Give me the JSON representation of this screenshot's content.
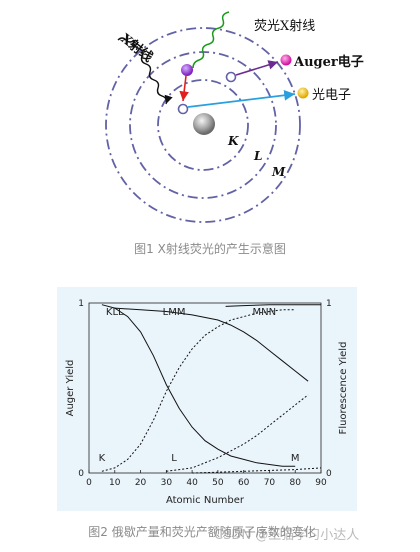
{
  "figure1": {
    "labels": {
      "incident_xray": "X射线",
      "fluorescent_xray": "荧光X射线",
      "auger_electron": "Auger电子",
      "photoelectron": "光电子",
      "shell_k": "K",
      "shell_l": "L",
      "shell_m": "M"
    },
    "colors": {
      "orbit": "#6262a6",
      "fluorescent_wave": "#1a9a1a",
      "auger_arrow": "#6a2c90",
      "auger_dot": "#e020a0",
      "photo_arrow": "#28a0e0",
      "photo_dot": "#f0c020",
      "red_arrow": "#e02020",
      "purple_electron": "#8a2be2",
      "nucleus": "#9a9a9a"
    },
    "caption": "图1 X射线荧光的产生示意图"
  },
  "chart_data": {
    "type": "line",
    "xlabel": "Atomic Number",
    "ylabel_left": "Auger Yield",
    "ylabel_right": "Fluorescence Yield",
    "xlim": [
      0,
      90
    ],
    "ylim": [
      0,
      1
    ],
    "x_ticks": [
      0,
      10,
      20,
      30,
      40,
      50,
      60,
      70,
      80,
      90
    ],
    "y_ticks_left": [
      0,
      1
    ],
    "y_ticks_right": [
      0,
      1
    ],
    "annotations": {
      "top": [
        "KLL",
        "LMM",
        "MNN"
      ],
      "bottom": [
        "K",
        "L",
        "M"
      ]
    },
    "series": [
      {
        "name": "KLL",
        "style": "solid",
        "x": [
          5,
          10,
          15,
          20,
          25,
          30,
          35,
          40,
          45,
          50,
          55,
          60,
          65,
          70,
          75,
          80
        ],
        "y": [
          0.99,
          0.97,
          0.92,
          0.83,
          0.69,
          0.52,
          0.38,
          0.27,
          0.19,
          0.14,
          0.1,
          0.08,
          0.06,
          0.05,
          0.04,
          0.04
        ]
      },
      {
        "name": "LMM",
        "style": "solid",
        "x": [
          10,
          20,
          30,
          40,
          50,
          55,
          60,
          65,
          70,
          75,
          80,
          85
        ],
        "y": [
          0.97,
          0.96,
          0.95,
          0.93,
          0.9,
          0.87,
          0.83,
          0.78,
          0.72,
          0.66,
          0.6,
          0.54
        ]
      },
      {
        "name": "MNN",
        "style": "solid",
        "x": [
          53,
          60,
          70,
          80,
          90
        ],
        "y": [
          0.98,
          0.985,
          0.99,
          0.99,
          0.99
        ]
      },
      {
        "name": "K",
        "style": "dashed",
        "x": [
          5,
          10,
          15,
          20,
          25,
          30,
          35,
          40,
          45,
          50,
          55,
          60,
          65,
          70,
          75,
          80
        ],
        "y": [
          0.01,
          0.03,
          0.08,
          0.17,
          0.31,
          0.48,
          0.62,
          0.73,
          0.81,
          0.86,
          0.9,
          0.92,
          0.94,
          0.95,
          0.96,
          0.96
        ]
      },
      {
        "name": "L",
        "style": "dashed",
        "x": [
          30,
          40,
          50,
          55,
          60,
          65,
          70,
          75,
          80,
          85
        ],
        "y": [
          0.01,
          0.03,
          0.09,
          0.13,
          0.17,
          0.22,
          0.28,
          0.34,
          0.4,
          0.46
        ]
      },
      {
        "name": "M",
        "style": "dashed",
        "x": [
          40,
          50,
          60,
          70,
          80,
          90
        ],
        "y": [
          0.0,
          0.005,
          0.01,
          0.015,
          0.02,
          0.03
        ]
      }
    ],
    "caption": "图2 俄歇产量和荧光产额随原子序数的变化"
  },
  "watermark": "CSDN @王猫学习小达人"
}
